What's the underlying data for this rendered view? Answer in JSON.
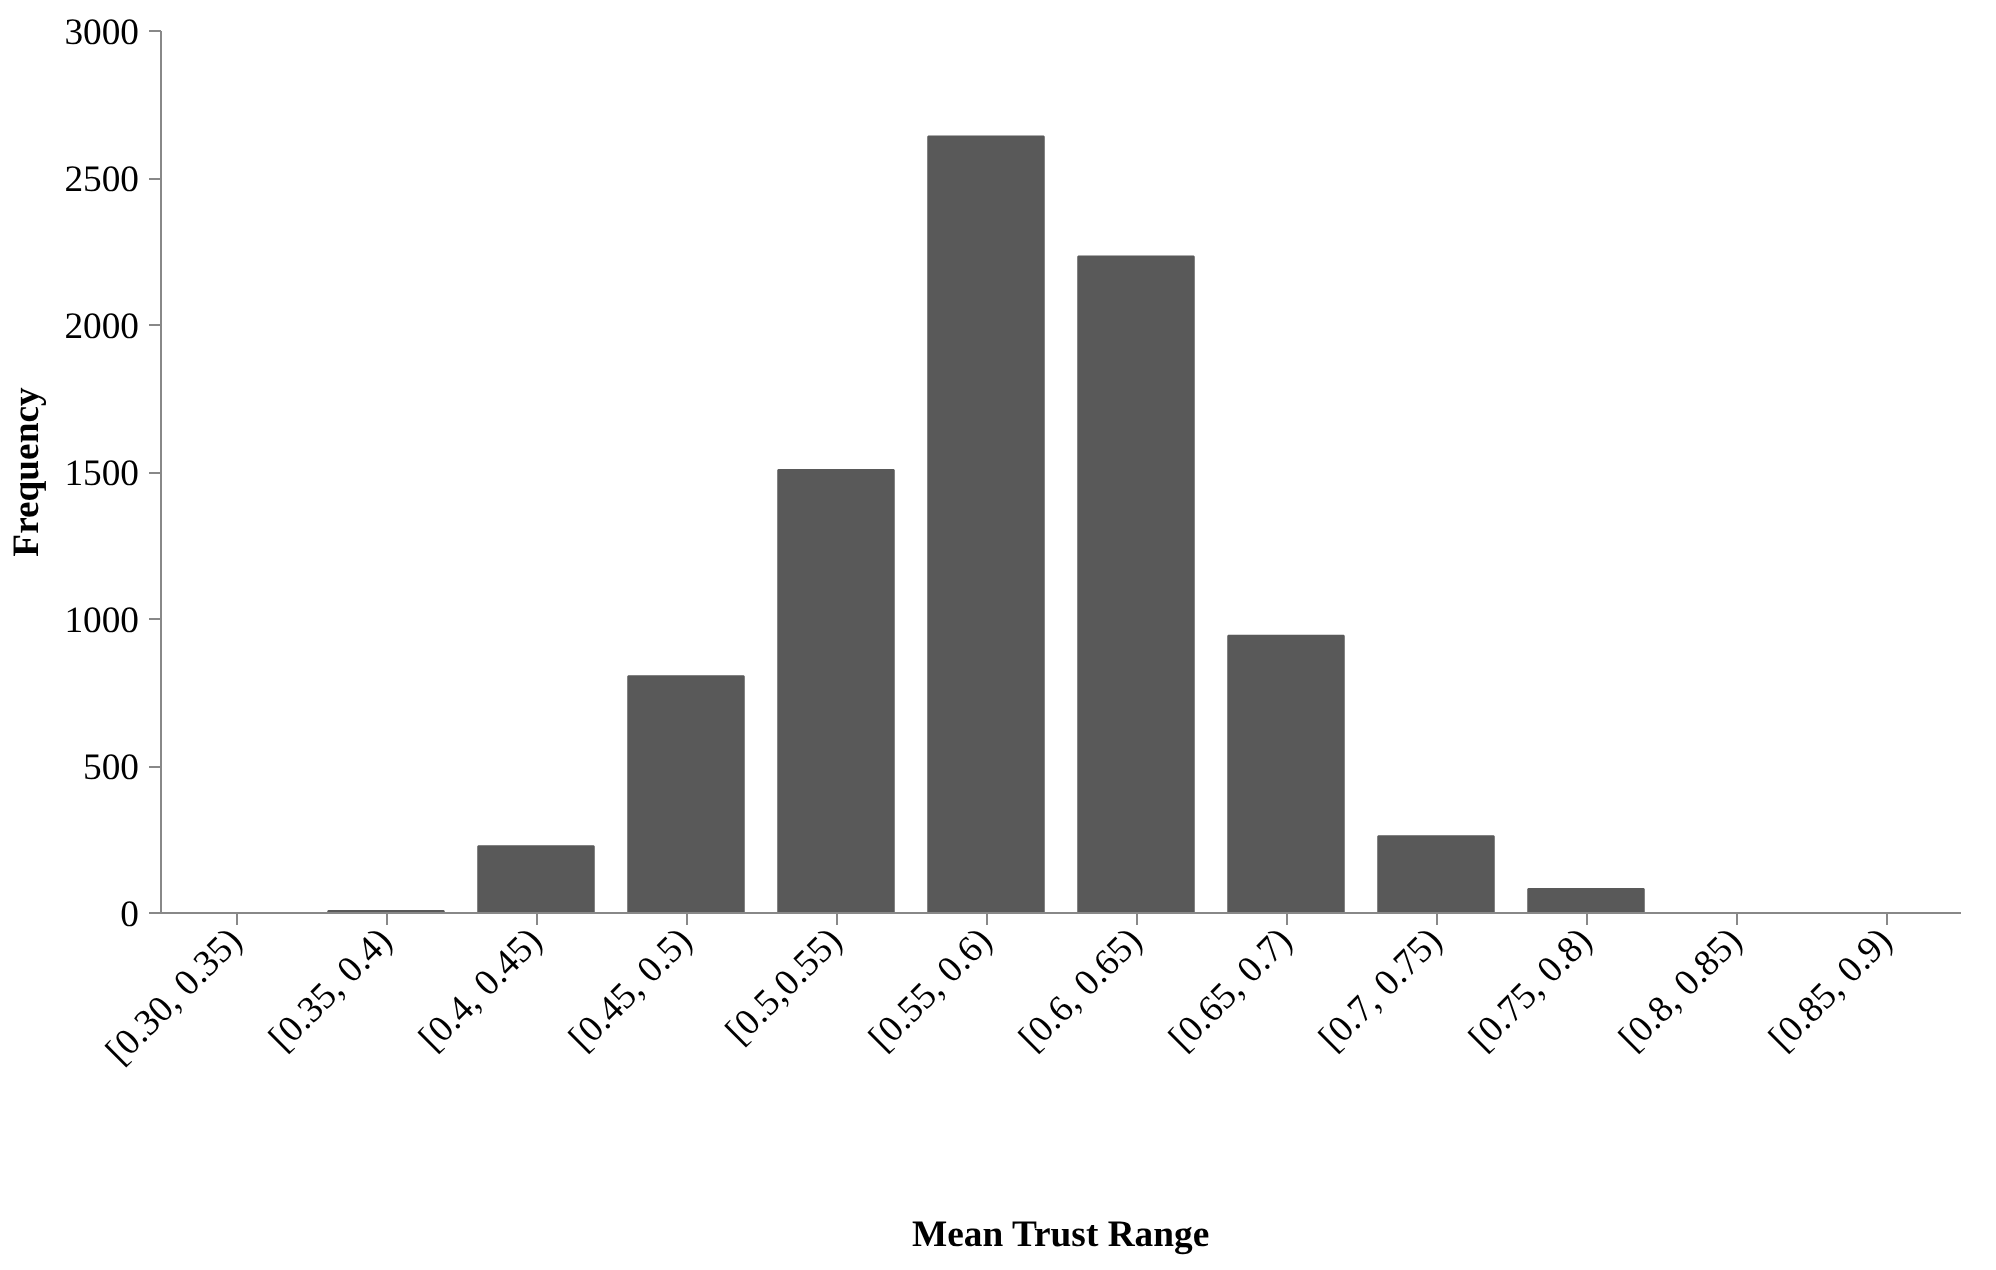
{
  "chart_data": {
    "type": "bar",
    "xlabel": "Mean Trust Range",
    "ylabel": "Frequency",
    "categories": [
      "[0.30, 0.35)",
      "[0.35, 0.4)",
      "[0.4, 0.45)",
      "[0.45, 0.5)",
      "[0.5,0.55)",
      "[0.55, 0.6)",
      "[0.6, 0.65)",
      "[0.65, 0.7)",
      "[0.7, 0.75)",
      "[0.75, 0.8)",
      "[0.8, 0.85)",
      "[0.85, 0.9)"
    ],
    "values": [
      0,
      7,
      227,
      805,
      1507,
      2641,
      2233,
      943,
      261,
      82,
      0,
      0
    ],
    "color": "#595959",
    "ylim": [
      0,
      3000
    ],
    "yticks": [
      0,
      500,
      1000,
      1500,
      2000,
      2500,
      3000
    ],
    "grid": false
  }
}
